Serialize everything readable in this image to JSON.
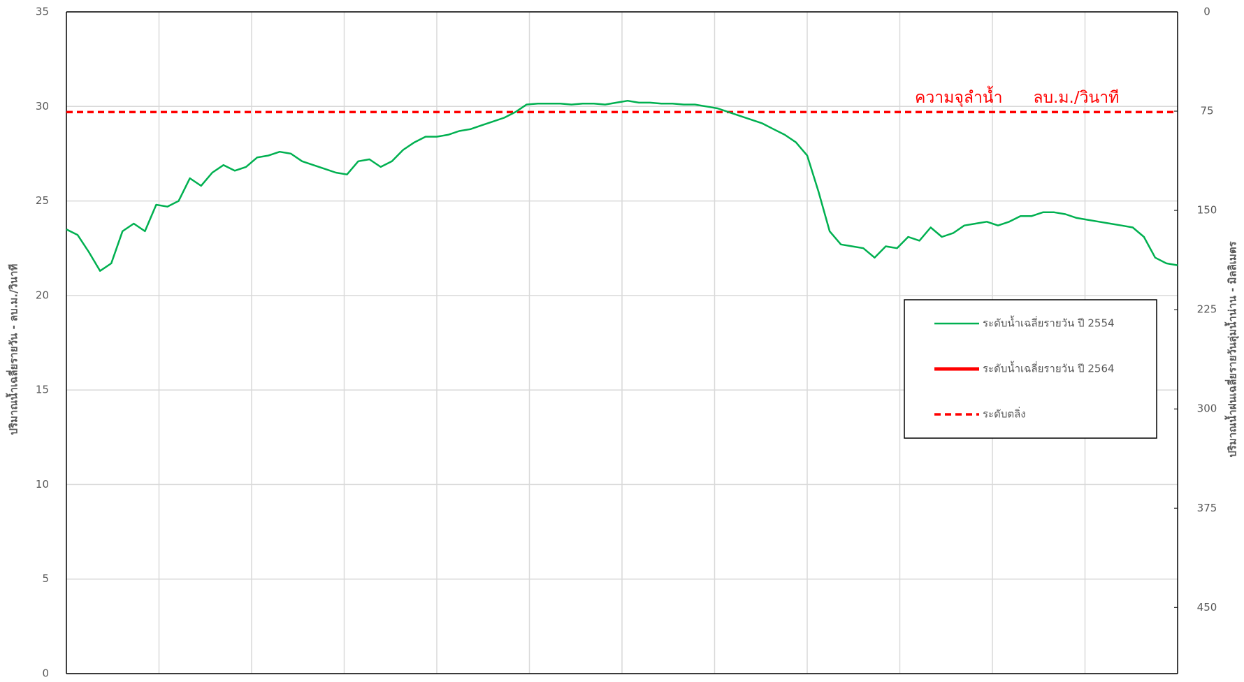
{
  "chart_data": {
    "type": "line",
    "ylabel": "ปริมาณน้ำเฉลี่ยรายวัน - ลบ.ม./วินาที",
    "y2label": "ปริมาณน้ำฝนเฉลี่ยรายวันลุ่มน้ำน่าน - มิลลิเมตร",
    "annotation": "ความจุลำน้ำ      ลบ.ม./วินาที",
    "ylim": [
      0,
      35
    ],
    "yticks": [
      0,
      5,
      10,
      15,
      20,
      25,
      30,
      35
    ],
    "y2lim": [
      0,
      500
    ],
    "y2ticks": [
      0,
      75,
      150,
      225,
      300,
      375,
      450
    ],
    "y2_inverted": true,
    "grid": true,
    "xgrid_count": 12,
    "legend": "right",
    "series": [
      {
        "name": "ระดับน้ำเฉลี่ยรายวัน ปี 2554",
        "color": "#00b050",
        "values": [
          23.5,
          23.2,
          22.3,
          21.3,
          21.7,
          23.4,
          23.8,
          23.4,
          24.8,
          24.7,
          25.0,
          26.2,
          25.8,
          26.5,
          26.9,
          26.6,
          26.8,
          27.3,
          27.4,
          27.6,
          27.5,
          27.1,
          26.9,
          26.7,
          26.5,
          26.4,
          27.1,
          27.2,
          26.8,
          27.1,
          27.7,
          28.1,
          28.4,
          28.4,
          28.5,
          28.7,
          28.8,
          29.0,
          29.2,
          29.4,
          29.7,
          30.1,
          30.15,
          30.15,
          30.15,
          30.1,
          30.15,
          30.15,
          30.1,
          30.2,
          30.3,
          30.2,
          30.2,
          30.15,
          30.15,
          30.1,
          30.1,
          30.0,
          29.9,
          29.7,
          29.5,
          29.3,
          29.1,
          28.8,
          28.5,
          28.1,
          27.4,
          25.5,
          23.4,
          22.7,
          22.6,
          22.5,
          22.0,
          22.6,
          22.5,
          23.1,
          22.9,
          23.6,
          23.1,
          23.3,
          23.7,
          23.8,
          23.9,
          23.7,
          23.9,
          24.2,
          24.2,
          24.4,
          24.4,
          24.3,
          24.1,
          24.0,
          23.9,
          23.8,
          23.7,
          23.6,
          23.1,
          22.0,
          21.7,
          21.6
        ]
      },
      {
        "name": "ระดับน้ำเฉลี่ยรายวัน ปี 2564",
        "color": "#ff0000",
        "values": [
          null,
          null,
          null,
          null,
          null,
          null,
          null,
          null,
          null,
          null,
          null,
          null,
          null,
          null,
          null,
          null,
          null,
          null,
          null,
          null,
          null,
          null,
          null,
          null,
          null,
          null,
          null,
          null,
          null,
          null,
          null,
          null,
          null,
          null,
          null,
          null,
          null,
          null,
          null,
          null,
          null,
          null,
          null,
          null,
          null,
          null,
          null,
          null,
          null,
          null,
          null,
          null,
          null,
          null,
          null,
          null,
          null,
          null,
          null,
          null,
          null,
          null,
          null,
          null,
          null,
          null,
          null,
          null,
          null,
          null,
          null,
          null,
          null,
          null,
          null,
          null,
          null,
          null,
          null,
          null,
          null,
          null,
          null,
          null,
          null,
          null,
          null,
          null,
          null,
          null,
          null,
          null,
          null,
          null,
          null,
          null,
          null,
          null,
          null,
          null
        ]
      }
    ],
    "threshold": {
      "name": "ระดับตลิ่ง",
      "value": 29.7,
      "color": "#ff0000"
    }
  }
}
